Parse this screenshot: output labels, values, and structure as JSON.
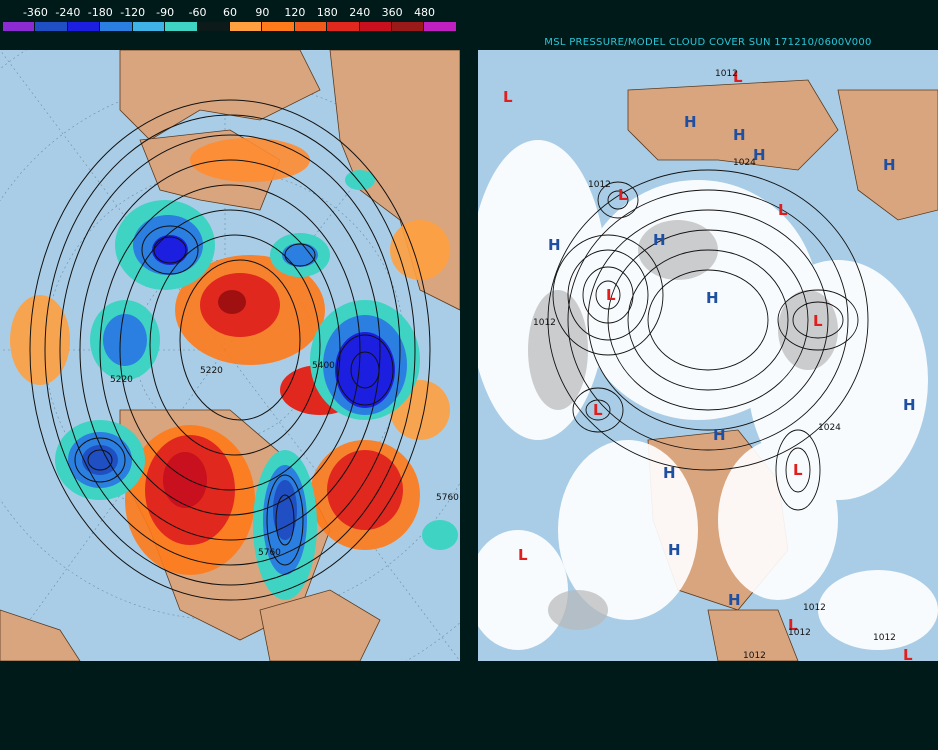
{
  "legend": {
    "labels": [
      "-360",
      "-240",
      "-180",
      "-120",
      "-90",
      "-60",
      "60",
      "90",
      "120",
      "180",
      "240",
      "360",
      "480"
    ],
    "colors": [
      "#8b2bd1",
      "#1f4fc2",
      "#1d1fe0",
      "#2a7fe0",
      "#3fb3e6",
      "#3fd3c3",
      "#0c1a1a",
      "#ffa040",
      "#ff7a1a",
      "#f05a1a",
      "#e0281e",
      "#c8101e",
      "#9a1a1a",
      "#c020c0"
    ]
  },
  "right_panel": {
    "title": "MSL PRESSURE/MODEL CLOUD COVER SUN 171210/0600V000"
  },
  "left_map": {
    "contour_labels": [
      "5220",
      "5760",
      "5760",
      "5400",
      "5220"
    ]
  },
  "right_map": {
    "high_symbol": "H",
    "low_symbol": "L",
    "isobar_labels": [
      "1012",
      "1012",
      "1024",
      "1012",
      "1024",
      "1012",
      "1012",
      "1012",
      "1012"
    ]
  },
  "colors": {
    "ocean": "#a9cde6",
    "land": "#d9a57e",
    "cloud": "#ffffff",
    "high": "#1f4fa0",
    "low": "#e01e1e"
  }
}
